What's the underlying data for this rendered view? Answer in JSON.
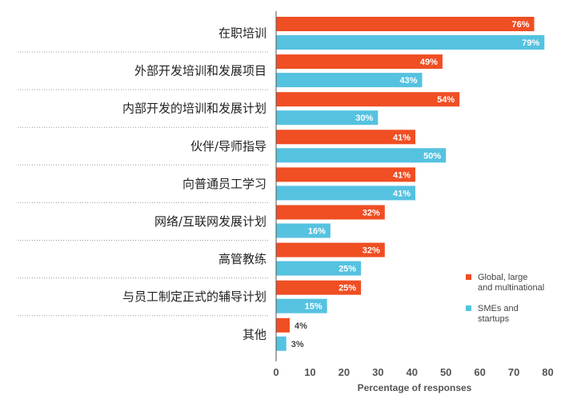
{
  "chart_data": {
    "type": "bar",
    "orientation": "horizontal",
    "categories": [
      "在职培训",
      "外部开发培训和发展项目",
      "内部开发的培训和发展计划",
      "伙伴/导师指导",
      "向普通员工学习",
      "网络/互联网发展计划",
      "高管教练",
      "与员工制定正式的辅导计划",
      "其他"
    ],
    "series": [
      {
        "name": "Global, large and multinational",
        "color": "#f04e23",
        "values": [
          76,
          49,
          54,
          41,
          41,
          32,
          32,
          25,
          4
        ],
        "labels": [
          "76%",
          "49%",
          "54%",
          "41%",
          "41%",
          "32%",
          "32%",
          "25%",
          "4%"
        ]
      },
      {
        "name": "SMEs and startups",
        "color": "#55c2e0",
        "values": [
          79,
          43,
          30,
          50,
          41,
          16,
          25,
          15,
          3
        ],
        "labels": [
          "79%",
          "43%",
          "30%",
          "50%",
          "41%",
          "16%",
          "25%",
          "15%",
          "3%"
        ]
      }
    ],
    "xlim": [
      0,
      80
    ],
    "xticks": [
      "0",
      "10",
      "20",
      "30",
      "40",
      "50",
      "60",
      "70",
      "80"
    ],
    "xlabel": "Percentage of responses",
    "ylabel": "",
    "title": "",
    "legend": {
      "position": "right",
      "entries": [
        {
          "lines": [
            "Global, large",
            "and multinational"
          ],
          "color": "#f04e23"
        },
        {
          "lines": [
            "SMEs and",
            "startups"
          ],
          "color": "#55c2e0"
        }
      ]
    },
    "grid": false
  }
}
